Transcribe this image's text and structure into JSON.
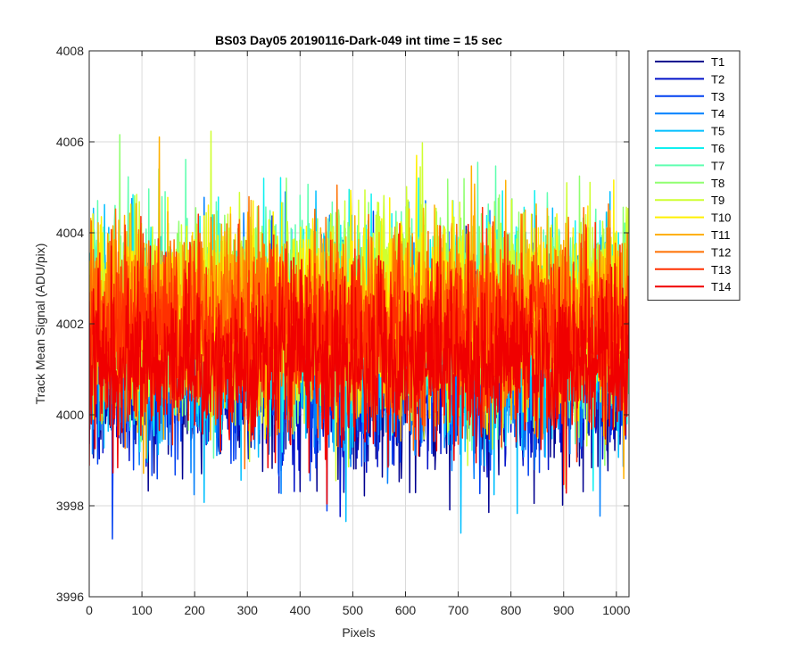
{
  "chart_data": {
    "type": "line",
    "title": "BS03 Day05 20190116-Dark-049 int time = 15 sec",
    "xlabel": "Pixels",
    "ylabel": "Track Mean Signal (ADU/pix)",
    "xlim": [
      0,
      1024
    ],
    "ylim": [
      3996,
      4008
    ],
    "xticks": [
      0,
      100,
      200,
      300,
      400,
      500,
      600,
      700,
      800,
      900,
      1000
    ],
    "yticks": [
      3996,
      3998,
      4000,
      4002,
      4004,
      4006,
      4008
    ],
    "xtick_labels": [
      "0",
      "100",
      "200",
      "300",
      "400",
      "500",
      "600",
      "700",
      "800",
      "900",
      "1000"
    ],
    "ytick_labels": [
      "3996",
      "3998",
      "4000",
      "4002",
      "4004",
      "4006",
      "4008"
    ],
    "grid": true,
    "legend_position": "outside-top-right",
    "n_points_per_series": 1024,
    "series": [
      {
        "name": "T1",
        "color": "#00008F",
        "mean": 4001.0,
        "spread": 1.05
      },
      {
        "name": "T2",
        "color": "#0010C8",
        "mean": 4001.1,
        "spread": 1.05
      },
      {
        "name": "T3",
        "color": "#0040F0",
        "mean": 4001.2,
        "spread": 1.05
      },
      {
        "name": "T4",
        "color": "#0080FF",
        "mean": 4001.3,
        "spread": 1.05
      },
      {
        "name": "T5",
        "color": "#00BFFF",
        "mean": 4001.6,
        "spread": 1.1
      },
      {
        "name": "T6",
        "color": "#10F0F0",
        "mean": 4002.0,
        "spread": 1.1
      },
      {
        "name": "T7",
        "color": "#60FFB0",
        "mean": 4002.2,
        "spread": 1.1
      },
      {
        "name": "T8",
        "color": "#90FF70",
        "mean": 4002.3,
        "spread": 1.1
      },
      {
        "name": "T9",
        "color": "#CFFF30",
        "mean": 4002.3,
        "spread": 1.1
      },
      {
        "name": "T10",
        "color": "#FFF000",
        "mean": 4002.3,
        "spread": 1.05
      },
      {
        "name": "T11",
        "color": "#FFB000",
        "mean": 4002.2,
        "spread": 1.05
      },
      {
        "name": "T12",
        "color": "#FF7000",
        "mean": 4002.0,
        "spread": 1.0
      },
      {
        "name": "T13",
        "color": "#FF3000",
        "mean": 4001.8,
        "spread": 0.95
      },
      {
        "name": "T14",
        "color": "#F00000",
        "mean": 4001.2,
        "spread": 0.9
      }
    ]
  }
}
